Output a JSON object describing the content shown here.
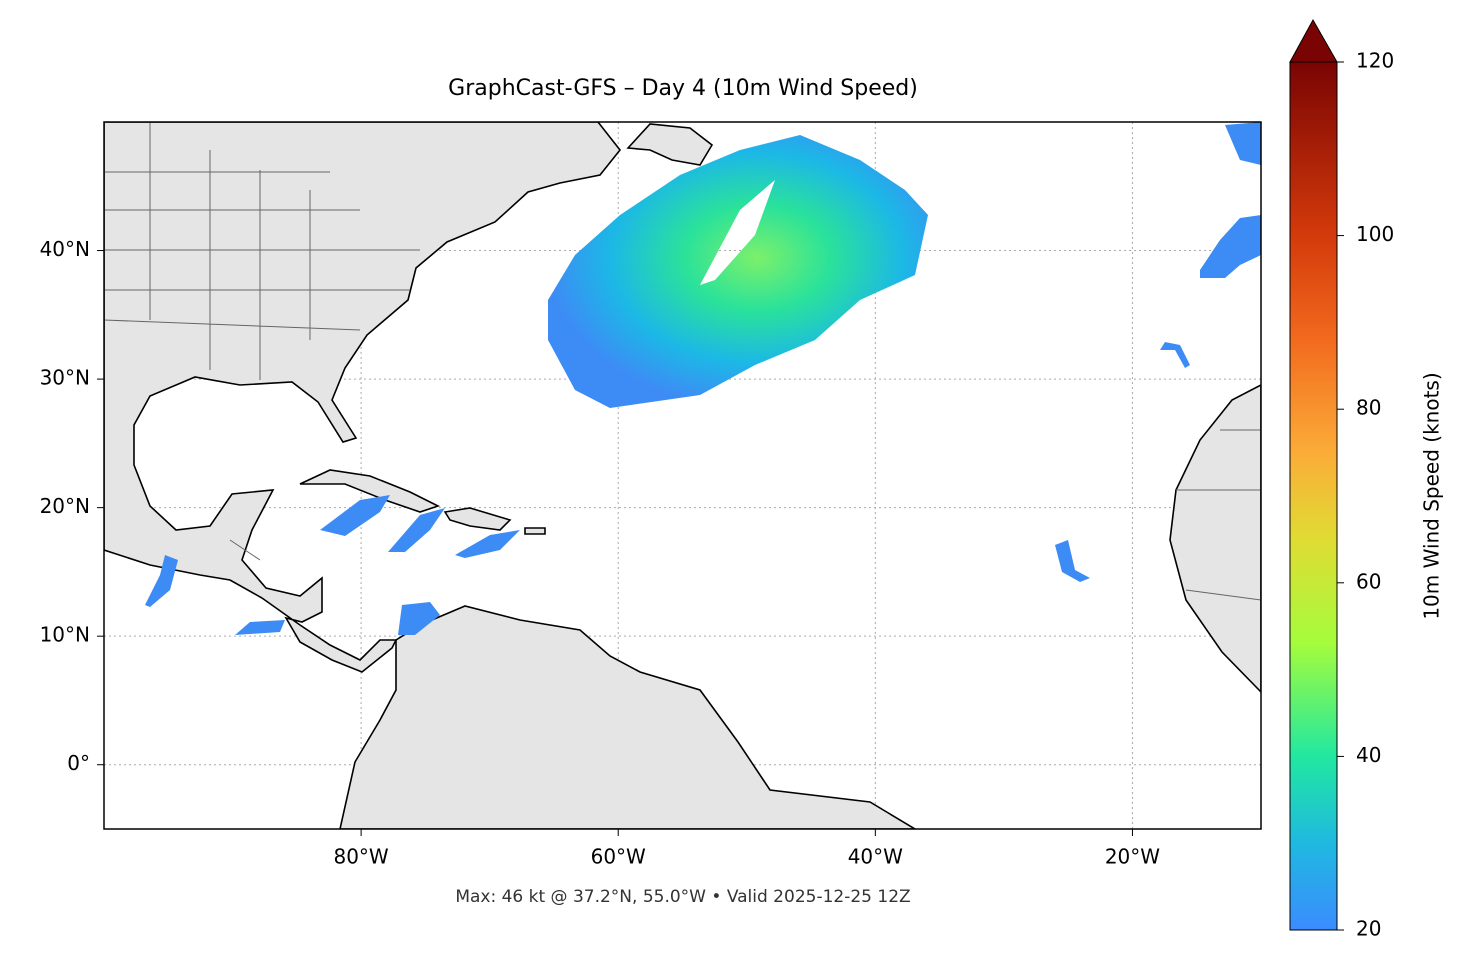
{
  "chart_data": {
    "type": "map",
    "title": "GraphCast-GFS – Day 4 (10m Wind Speed)",
    "footer": "Max: 46 kt @ 37.2°N, 55.0°W • Valid 2025-12-25 12Z",
    "xlim": [
      -100,
      -10
    ],
    "ylim": [
      -5,
      50
    ],
    "xticks": [
      {
        "value": -80,
        "label": "80°W"
      },
      {
        "value": -60,
        "label": "60°W"
      },
      {
        "value": -40,
        "label": "40°W"
      },
      {
        "value": -20,
        "label": "20°W"
      }
    ],
    "yticks": [
      {
        "value": 0,
        "label": "0°"
      },
      {
        "value": 10,
        "label": "10°N"
      },
      {
        "value": 20,
        "label": "20°N"
      },
      {
        "value": 30,
        "label": "30°N"
      },
      {
        "value": 40,
        "label": "40°N"
      }
    ],
    "grid": true,
    "colorbar": {
      "label": "10m Wind Speed (knots)",
      "lim": [
        20,
        120
      ],
      "ticks": [
        20,
        40,
        60,
        80,
        100,
        120
      ]
    }
  }
}
